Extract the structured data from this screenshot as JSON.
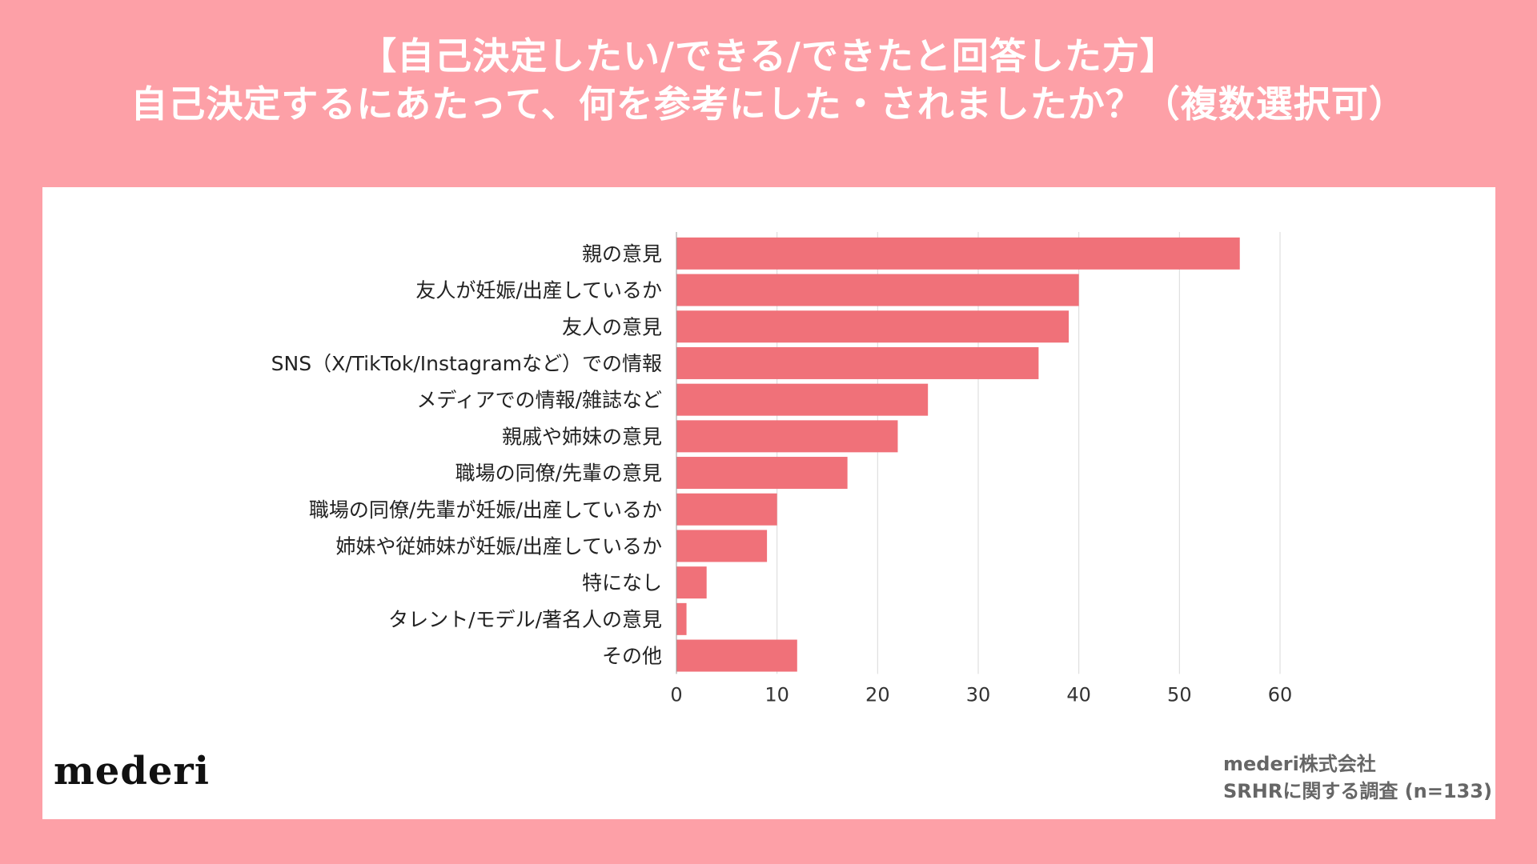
{
  "header": {
    "title_line1": "【自己決定したい/できる/できたと回答した方】",
    "title_line2": "自己決定するにあたって、何を参考にした・されましたか？（複数選択可）"
  },
  "footer": {
    "logo": "mederi",
    "credit_line1": "mederi株式会社",
    "credit_line2": "SRHRに関する調査 (n=133)"
  },
  "colors": {
    "background": "#fda0a7",
    "bar": "#f07179",
    "panel": "#ffffff",
    "grid": "#d9d9d9"
  },
  "chart_data": {
    "type": "bar",
    "orientation": "horizontal",
    "categories": [
      "親の意見",
      "友人が妊娠/出産しているか",
      "友人の意見",
      "SNS（X/TikTok/Instagramなど）での情報",
      "メディアでの情報/雑誌など",
      "親戚や姉妹の意見",
      "職場の同僚/先輩の意見",
      "職場の同僚/先輩が妊娠/出産しているか",
      "姉妹や従姉妹が妊娠/出産しているか",
      "特になし",
      "タレント/モデル/著名人の意見",
      "その他"
    ],
    "values": [
      56,
      40,
      39,
      36,
      25,
      22,
      17,
      10,
      9,
      3,
      1,
      12
    ],
    "xlim": [
      0,
      60
    ],
    "xticks": [
      "0",
      "10",
      "20",
      "30",
      "40",
      "50",
      "60"
    ],
    "grid": true,
    "title": "",
    "xlabel": "",
    "ylabel": ""
  }
}
